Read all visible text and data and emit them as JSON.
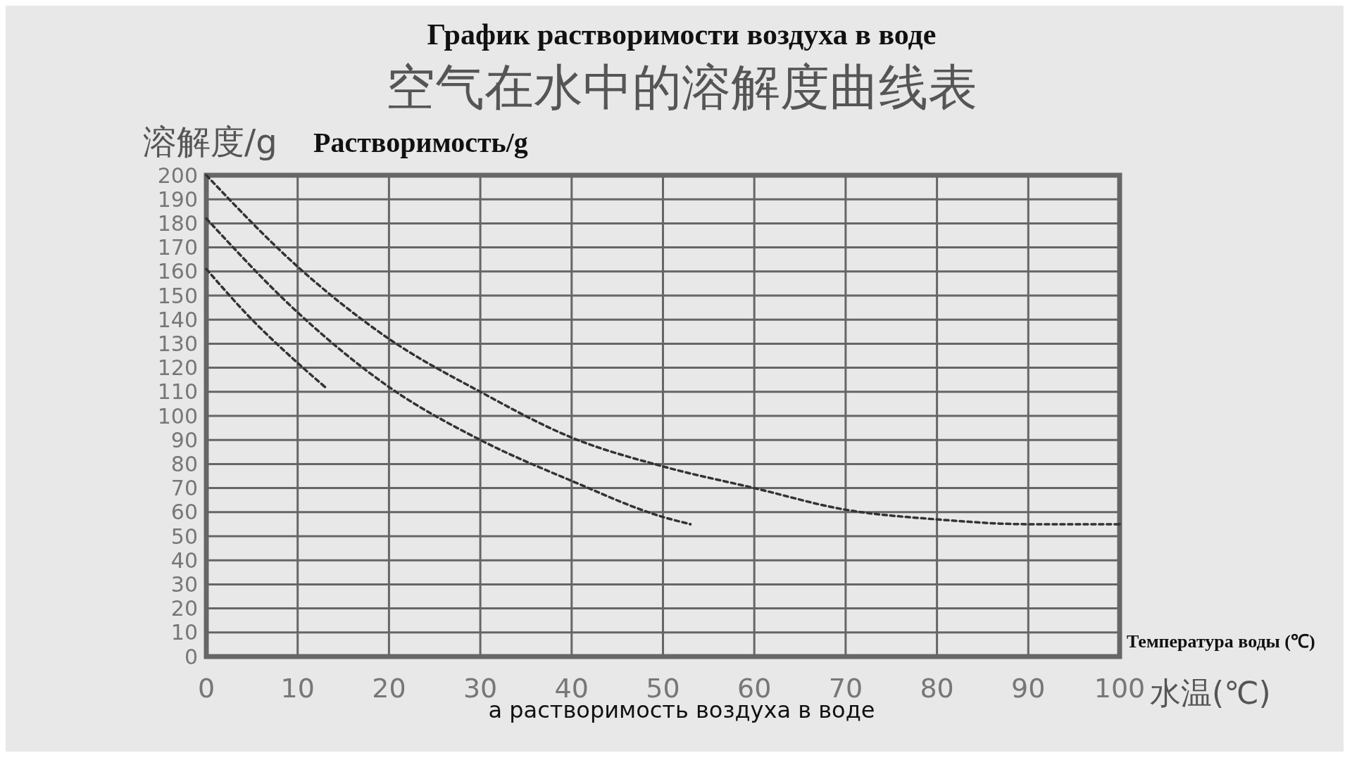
{
  "chart_data": {
    "type": "line",
    "title": "График растворимости воздуха в воде",
    "subtitle": "空气在水中的溶解度曲线表",
    "ylabel": "溶解度/g",
    "xlabel": "水温(℃)",
    "annotations": [
      "Растворимость/g",
      "Температура воды (℃)",
      "а растворимость воздуха в воде"
    ],
    "xlim": [
      0,
      100
    ],
    "xticks": [
      0,
      10,
      20,
      30,
      40,
      50,
      60,
      70,
      80,
      90,
      100
    ],
    "ylim": [
      0,
      200
    ],
    "yticks": [
      0,
      10,
      20,
      30,
      40,
      50,
      60,
      70,
      80,
      90,
      100,
      110,
      120,
      130,
      140,
      150,
      160,
      170,
      180,
      190,
      200
    ],
    "grid": true,
    "line_style": "dashed",
    "marker": "none",
    "series": [
      {
        "color": "#333333",
        "x": [
          0,
          10,
          20,
          30,
          40,
          50,
          60,
          70,
          80,
          90,
          100
        ],
        "values": [
          200,
          162,
          132,
          110,
          91,
          79,
          70,
          61,
          57,
          55,
          55
        ]
      },
      {
        "color": "#333333",
        "x": [
          0,
          10,
          20,
          30,
          40,
          50,
          53
        ],
        "values": [
          182,
          143,
          112,
          90,
          73,
          58,
          55
        ]
      },
      {
        "color": "#333333",
        "x": [
          0,
          5,
          10,
          13
        ],
        "values": [
          161,
          140,
          122,
          112
        ]
      }
    ]
  }
}
